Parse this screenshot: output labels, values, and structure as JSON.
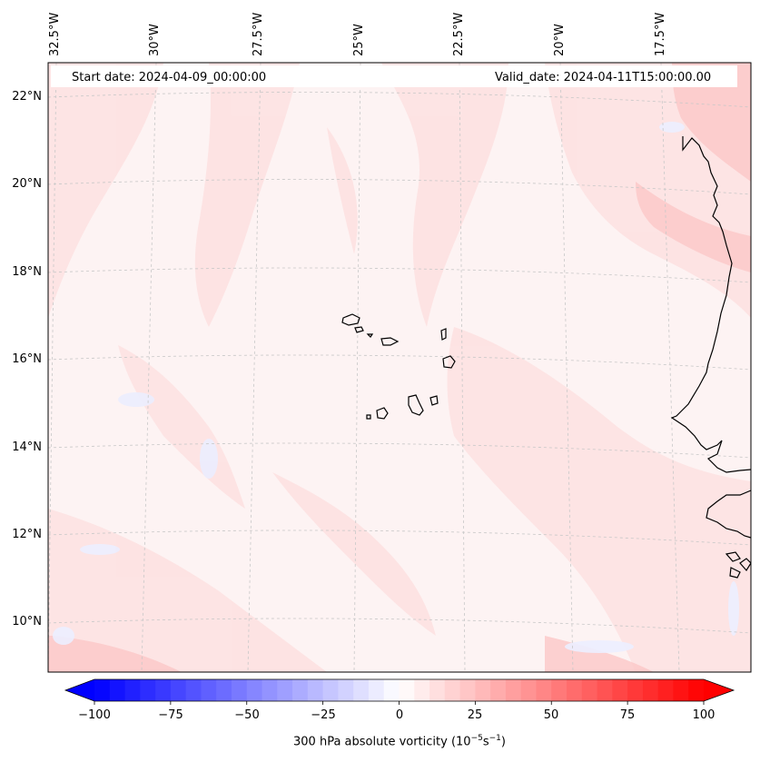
{
  "header": {
    "start_date": "Start date: 2024-04-09_00:00:00",
    "valid_date": "Valid_date: 2024-04-11T15:00:00.00"
  },
  "longitude_labels": [
    "32.5°W",
    "30°W",
    "27.5°W",
    "25°W",
    "22.5°W",
    "20°W",
    "17.5°W"
  ],
  "latitude_labels": [
    "22°N",
    "20°N",
    "18°N",
    "16°N",
    "14°N",
    "12°N",
    "10°N"
  ],
  "colorbar": {
    "ticks": [
      "−100",
      "−75",
      "−50",
      "−25",
      "0",
      "25",
      "50",
      "75",
      "100"
    ],
    "label_main": "300 hPa absolute vorticity (10",
    "label_exp1": "−5",
    "label_mid": "s",
    "label_exp2": "−1",
    "label_end": ")",
    "range": [
      -100,
      100
    ],
    "colormap": "bwr",
    "extend": "both"
  },
  "colors": {
    "negative": "#0000ff",
    "neutral": "#ffffff",
    "positive": "#ff0000",
    "coastline": "#000000",
    "gridline": "#c8c8c8",
    "field_background": "#fdf3f3",
    "field_band": "#fde1e1",
    "field_weak_negative": "#eef0ff"
  }
}
